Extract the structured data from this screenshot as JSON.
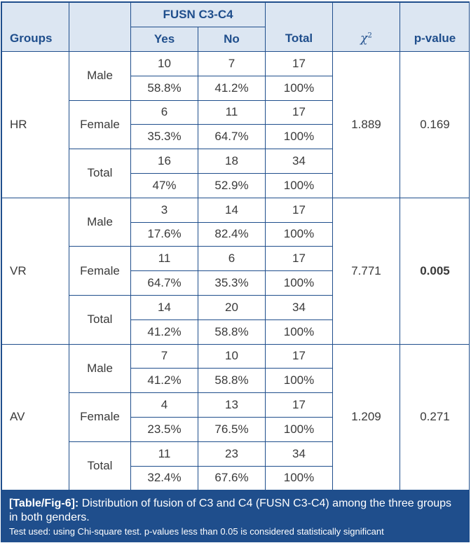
{
  "header": {
    "groups": "Groups",
    "fusn": "FUSN C3-C4",
    "yes": "Yes",
    "no": "No",
    "total": "Total",
    "chi_symbol": "χ",
    "chi_sup": "2",
    "pvalue": "p-value"
  },
  "groups": [
    {
      "name": "HR",
      "chi": "1.889",
      "p": "0.169",
      "p_bold": false,
      "rows": [
        {
          "label": "Male",
          "yes": "10",
          "no": "7",
          "total": "17",
          "yes_pct": "58.8%",
          "no_pct": "41.2%",
          "total_pct": "100%"
        },
        {
          "label": "Female",
          "yes": "6",
          "no": "11",
          "total": "17",
          "yes_pct": "35.3%",
          "no_pct": "64.7%",
          "total_pct": "100%"
        },
        {
          "label": "Total",
          "yes": "16",
          "no": "18",
          "total": "34",
          "yes_pct": "47%",
          "no_pct": "52.9%",
          "total_pct": "100%"
        }
      ]
    },
    {
      "name": "VR",
      "chi": "7.771",
      "p": "0.005",
      "p_bold": true,
      "rows": [
        {
          "label": "Male",
          "yes": "3",
          "no": "14",
          "total": "17",
          "yes_pct": "17.6%",
          "no_pct": "82.4%",
          "total_pct": "100%"
        },
        {
          "label": "Female",
          "yes": "11",
          "no": "6",
          "total": "17",
          "yes_pct": "64.7%",
          "no_pct": "35.3%",
          "total_pct": "100%"
        },
        {
          "label": "Total",
          "yes": "14",
          "no": "20",
          "total": "34",
          "yes_pct": "41.2%",
          "no_pct": "58.8%",
          "total_pct": "100%"
        }
      ]
    },
    {
      "name": "AV",
      "chi": "1.209",
      "p": "0.271",
      "p_bold": false,
      "rows": [
        {
          "label": "Male",
          "yes": "7",
          "no": "10",
          "total": "17",
          "yes_pct": "41.2%",
          "no_pct": "58.8%",
          "total_pct": "100%"
        },
        {
          "label": "Female",
          "yes": "4",
          "no": "13",
          "total": "17",
          "yes_pct": "23.5%",
          "no_pct": "76.5%",
          "total_pct": "100%"
        },
        {
          "label": "Total",
          "yes": "11",
          "no": "23",
          "total": "34",
          "yes_pct": "32.4%",
          "no_pct": "67.6%",
          "total_pct": "100%"
        }
      ]
    }
  ],
  "caption": {
    "label": "[Table/Fig-6]:",
    "text": " Distribution of fusion of C3 and C4 (FUSN C3-C4) among the three groups in both genders.",
    "note": "Test used: using Chi-square test. p-values less than 0.05 is considered statistically significant"
  }
}
